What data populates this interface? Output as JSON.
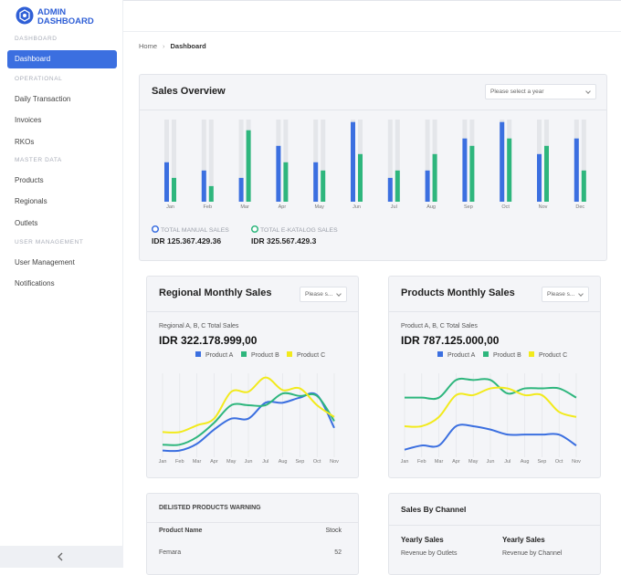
{
  "brand": {
    "line1": "ADMIN",
    "line2": "DASHBOARD"
  },
  "sidebar": {
    "sections": [
      {
        "title": "DASHBOARD",
        "items": [
          {
            "label": "Dashboard",
            "active": true
          }
        ]
      },
      {
        "title": "OPERATIONAL",
        "items": [
          {
            "label": "Daily Transaction"
          },
          {
            "label": "Invoices"
          },
          {
            "label": "RKOs"
          }
        ]
      },
      {
        "title": "MASTER DATA",
        "items": [
          {
            "label": "Products"
          },
          {
            "label": "Regionals"
          },
          {
            "label": "Outlets"
          }
        ]
      },
      {
        "title": "USER MANAGEMENT",
        "items": [
          {
            "label": "User Management"
          },
          {
            "label": "Notifications"
          }
        ]
      }
    ]
  },
  "breadcrumb": [
    "Home",
    "Dashboard"
  ],
  "chart_data": [
    {
      "type": "bar",
      "title": "Sales Overview",
      "control": "Please select a year",
      "categories": [
        "Jan",
        "Feb",
        "Mar",
        "Apr",
        "May",
        "Jun",
        "Jul",
        "Aug",
        "Sep",
        "Oct",
        "Nov",
        "Dec"
      ],
      "ylim": [
        0,
        100
      ],
      "series": [
        {
          "name": "TOTAL MANUAL SALES",
          "color": "#3b6fe0",
          "total": "IDR 125.367.429.36",
          "values": [
            48,
            38,
            29,
            68,
            48,
            97,
            29,
            38,
            77,
            97,
            58,
            77
          ]
        },
        {
          "name": "TOTAL E-KATALOG SALES",
          "color": "#2eb67d",
          "total": "IDR 325.567.429.3",
          "values": [
            29,
            19,
            87,
            48,
            38,
            58,
            38,
            58,
            68,
            77,
            68,
            38
          ]
        }
      ]
    },
    {
      "type": "line",
      "title": "Regional Monthly Sales",
      "control": "Please s...",
      "subtitle": "Regional A, B, C Total Sales",
      "total": "IDR 322.178.999,00",
      "categories": [
        "Jan",
        "Feb",
        "Mar",
        "Apr",
        "May",
        "Jun",
        "Jul",
        "Aug",
        "Sep",
        "Oct",
        "Nov"
      ],
      "ylim": [
        0,
        100
      ],
      "series": [
        {
          "name": "Product A",
          "color": "#3b6fe0",
          "values": [
            8,
            8,
            16,
            33,
            46,
            46,
            65,
            65,
            71,
            74,
            35
          ]
        },
        {
          "name": "Product B",
          "color": "#2eb67d",
          "values": [
            15,
            15,
            24,
            41,
            62,
            62,
            62,
            76,
            73,
            73,
            43
          ]
        },
        {
          "name": "Product C",
          "color": "#f2ea1c",
          "values": [
            30,
            30,
            38,
            46,
            78,
            78,
            95,
            80,
            82,
            62,
            48
          ]
        }
      ]
    },
    {
      "type": "line",
      "title": "Products Monthly Sales",
      "control": "Please s...",
      "subtitle": "Product A, B, C Total Sales",
      "total": "IDR 787.125.000,00",
      "categories": [
        "Jan",
        "Feb",
        "Mar",
        "Apr",
        "May",
        "Jun",
        "Jul",
        "Aug",
        "Sep",
        "Oct",
        "Nov"
      ],
      "ylim": [
        0,
        100
      ],
      "series": [
        {
          "name": "Product A",
          "color": "#3b6fe0",
          "values": [
            9,
            14,
            14,
            37,
            37,
            33,
            27,
            27,
            27,
            27,
            14
          ]
        },
        {
          "name": "Product B",
          "color": "#2eb67d",
          "values": [
            71,
            71,
            71,
            92,
            92,
            92,
            76,
            82,
            82,
            82,
            71
          ]
        },
        {
          "name": "Product C",
          "color": "#f2ea1c",
          "values": [
            37,
            37,
            48,
            74,
            74,
            82,
            82,
            74,
            74,
            54,
            48
          ]
        }
      ]
    }
  ],
  "delisted": {
    "title": "DELISTED PRODUCTS WARNING",
    "columns": [
      "Product Name",
      "Stock"
    ],
    "rows": [
      [
        "Femara",
        52
      ]
    ]
  },
  "channel": {
    "title": "Sales By Channel",
    "blocks": [
      {
        "title": "Yearly Sales",
        "caption": "Revenue by Outlets"
      },
      {
        "title": "Yearly Sales",
        "caption": "Revenue by Channel"
      }
    ]
  }
}
